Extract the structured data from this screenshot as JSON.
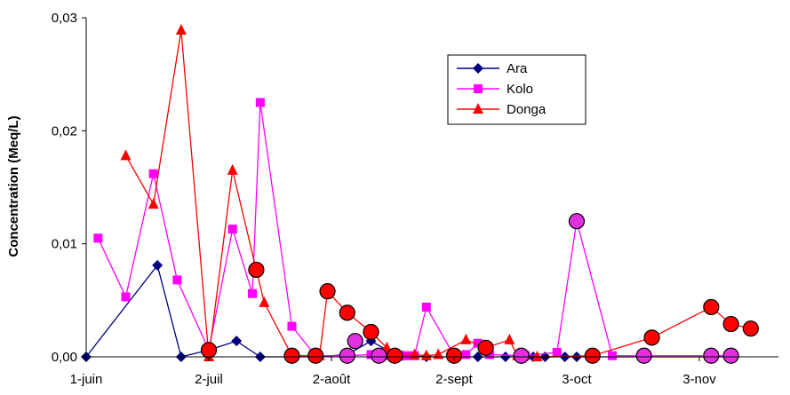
{
  "chart_data": {
    "type": "line",
    "title": "",
    "xlabel": "",
    "ylabel": "Concentration (Meq/L)",
    "x_tick_labels": [
      "1-juin",
      "2-juil",
      "2-août",
      "2-sept",
      "3-oct",
      "3-nov"
    ],
    "x_tick_days": [
      0,
      31,
      62,
      93,
      124,
      155
    ],
    "xlim": [
      0,
      175
    ],
    "ylim": [
      0,
      0.03
    ],
    "y_ticks": [
      "0,00",
      "0,01",
      "0,02",
      "0,03"
    ],
    "y_tick_values": [
      0,
      0.01,
      0.02,
      0.03
    ],
    "legend": "inside-top-right",
    "series": [
      {
        "name": "Ara",
        "color": "#000080",
        "marker": "diamond",
        "x": [
          0,
          18,
          24,
          31,
          38,
          44,
          52,
          58,
          66,
          72,
          78,
          80,
          86,
          93,
          99,
          106,
          113,
          116,
          121,
          124,
          128,
          141,
          158,
          163
        ],
        "y": [
          0,
          0.0081,
          0,
          0.0006,
          0.0014,
          0,
          0,
          0,
          0.0002,
          0.0014,
          0.0002,
          0.0001,
          0,
          0,
          0,
          0,
          0,
          0,
          0,
          0,
          0,
          0,
          0,
          0
        ]
      },
      {
        "name": "Kolo",
        "color": "#FF00FF",
        "marker": "square",
        "x": [
          3,
          10,
          17,
          23,
          31,
          37,
          42,
          44,
          52,
          58,
          66,
          72,
          76,
          81,
          83,
          86,
          93,
          96,
          99,
          102,
          111,
          119,
          124,
          133,
          141,
          158,
          163
        ],
        "y": [
          0.0105,
          0.0053,
          0.0162,
          0.0068,
          0.0006,
          0.0113,
          0.0056,
          0.0225,
          0.0027,
          0.0001,
          0.0001,
          0.0002,
          0.0001,
          0.0001,
          0.0001,
          0.0044,
          0.0001,
          0.0002,
          0.0012,
          0.0002,
          0.0001,
          0.0004,
          0.012,
          0.0001,
          0.0001,
          0.0001,
          0.0001
        ]
      },
      {
        "name": "Donga",
        "color": "#FF0000",
        "marker": "triangle",
        "x": [
          10,
          17,
          24,
          31,
          37,
          43,
          45,
          52,
          59,
          61,
          66,
          72,
          76,
          78,
          83,
          86,
          89,
          96,
          101,
          107,
          109,
          114,
          128,
          143,
          158,
          163,
          168
        ],
        "y": [
          0.0178,
          0.0135,
          0.0289,
          0,
          0.0165,
          0.0077,
          0.0048,
          0.0001,
          0.0001,
          0.0058,
          0.0039,
          0.0022,
          0.0008,
          0.0001,
          0.0002,
          0.0001,
          0.0002,
          0.0015,
          0.0008,
          0.0015,
          0.0001,
          0,
          0.0001,
          0.0017,
          0.0044,
          0.0029,
          0.0025
        ]
      }
    ],
    "circles": [
      {
        "x": 31,
        "y": 0.0006,
        "fill": "#FF0000"
      },
      {
        "x": 43,
        "y": 0.0077,
        "fill": "#FF0000"
      },
      {
        "x": 52,
        "y": 0.0001,
        "fill": "#FF0000"
      },
      {
        "x": 58,
        "y": 0.0001,
        "fill": "#FF0000"
      },
      {
        "x": 61,
        "y": 0.0058,
        "fill": "#FF0000"
      },
      {
        "x": 66,
        "y": 0.0039,
        "fill": "#FF0000"
      },
      {
        "x": 72,
        "y": 0.0022,
        "fill": "#FF0000"
      },
      {
        "x": 78,
        "y": 0.0001,
        "fill": "#FF0000"
      },
      {
        "x": 93,
        "y": 0.0001,
        "fill": "#FF0000"
      },
      {
        "x": 101,
        "y": 0.0008,
        "fill": "#FF0000"
      },
      {
        "x": 128,
        "y": 0.0001,
        "fill": "#FF0000"
      },
      {
        "x": 143,
        "y": 0.0017,
        "fill": "#FF0000"
      },
      {
        "x": 158,
        "y": 0.0044,
        "fill": "#FF0000"
      },
      {
        "x": 163,
        "y": 0.0029,
        "fill": "#FF0000"
      },
      {
        "x": 168,
        "y": 0.0025,
        "fill": "#FF0000"
      },
      {
        "x": 66,
        "y": 0.0001,
        "fill": "#E030E0"
      },
      {
        "x": 68,
        "y": 0.0014,
        "fill": "#E030E0"
      },
      {
        "x": 74,
        "y": 0.0001,
        "fill": "#E030E0"
      },
      {
        "x": 110,
        "y": 0.0001,
        "fill": "#E030E0"
      },
      {
        "x": 124,
        "y": 0.012,
        "fill": "#E030E0"
      },
      {
        "x": 141,
        "y": 0.0001,
        "fill": "#E030E0"
      },
      {
        "x": 158,
        "y": 0.0001,
        "fill": "#E030E0"
      },
      {
        "x": 163,
        "y": 0.0001,
        "fill": "#E030E0"
      }
    ]
  }
}
